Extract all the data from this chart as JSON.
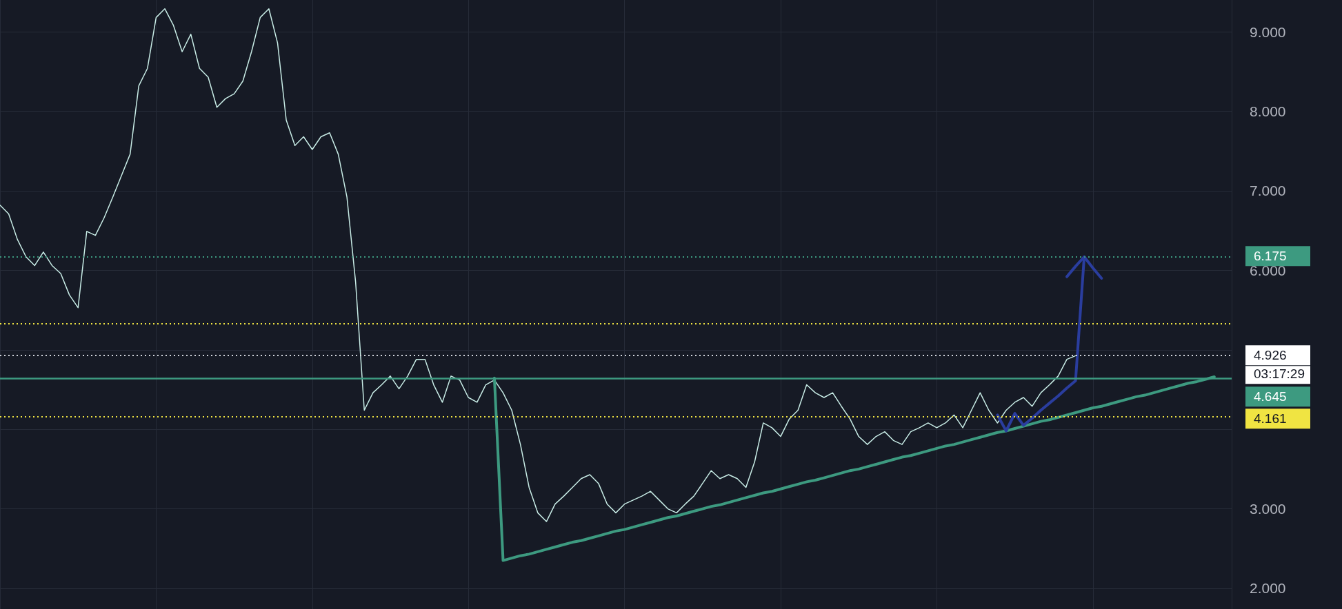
{
  "chart_data": {
    "type": "line",
    "marker": "none",
    "grid": true,
    "tick_labels": "y",
    "categories": [
      null,
      null,
      null,
      null,
      null,
      null,
      null,
      null,
      null,
      null,
      null,
      null,
      null,
      null,
      null,
      null,
      null,
      null,
      null,
      null,
      null,
      null,
      null,
      null,
      null,
      null,
      null,
      null,
      null,
      null,
      null,
      null,
      null,
      null,
      null,
      null,
      null,
      null,
      null,
      null,
      null,
      null,
      null,
      null,
      null,
      null,
      null,
      null,
      null,
      null,
      null,
      null,
      null,
      null,
      null,
      null,
      null,
      null,
      null,
      null,
      null,
      null,
      null,
      null,
      null,
      null,
      null,
      null,
      null,
      null,
      null,
      null,
      null,
      null,
      null,
      null,
      null,
      null,
      null,
      null,
      null,
      null,
      null,
      null,
      null,
      null,
      null,
      null,
      null,
      null,
      null,
      null,
      null,
      null,
      null,
      null,
      null,
      null,
      null,
      null,
      null,
      null,
      null,
      null,
      null,
      null,
      null,
      null,
      null,
      null,
      null,
      null,
      null,
      null,
      null,
      null,
      null,
      null,
      null,
      null,
      null,
      null,
      null,
      null,
      null,
      null,
      null,
      null,
      null,
      null,
      null,
      null,
      null,
      null,
      null,
      null,
      null,
      null,
      null,
      null,
      null,
      null,
      null
    ],
    "ylim": [
      1.74,
      9.4
    ],
    "yticks": [
      {
        "value": 2,
        "label": "2.000"
      },
      {
        "value": 3,
        "label": "3.000"
      },
      {
        "value": 4,
        "label": null
      },
      {
        "value": 5,
        "label": null
      },
      {
        "value": 6,
        "label": "6.000"
      },
      {
        "value": 7,
        "label": "7.000"
      },
      {
        "value": 8,
        "label": "8.000"
      },
      {
        "value": 9,
        "label": "9.000"
      }
    ],
    "series": [
      {
        "color": "#c8ece6",
        "values": [
          6.82,
          6.71,
          6.39,
          6.17,
          6.06,
          6.23,
          6.06,
          5.96,
          5.69,
          5.53,
          6.49,
          6.44,
          6.66,
          6.92,
          7.19,
          7.46,
          8.32,
          8.54,
          9.18,
          9.29,
          9.08,
          8.75,
          8.97,
          8.54,
          8.43,
          8.05,
          8.16,
          8.22,
          8.38,
          8.75,
          9.18,
          9.29,
          8.86,
          7.89,
          7.57,
          7.68,
          7.52,
          7.68,
          7.73,
          7.46,
          6.92,
          5.85,
          4.24,
          4.46,
          4.56,
          4.67,
          4.51,
          4.67,
          4.88,
          4.88,
          4.56,
          4.34,
          4.67,
          4.62,
          4.4,
          4.34,
          4.56,
          4.62,
          4.46,
          4.24,
          3.81,
          3.27,
          2.95,
          2.84,
          3.06,
          3.16,
          3.27,
          3.38,
          3.43,
          3.32,
          3.06,
          2.95,
          3.06,
          3.11,
          3.16,
          3.22,
          3.11,
          3.0,
          2.95,
          3.06,
          3.16,
          3.32,
          3.48,
          3.38,
          3.43,
          3.38,
          3.27,
          3.59,
          4.08,
          4.02,
          3.91,
          4.13,
          4.24,
          4.56,
          4.46,
          4.4,
          4.46,
          4.29,
          4.13,
          3.91,
          3.81,
          3.91,
          3.97,
          3.86,
          3.81,
          3.97,
          4.02,
          4.08,
          4.02,
          4.08,
          4.18,
          4.02,
          4.24,
          4.46,
          4.24,
          4.08,
          4.24,
          4.34,
          4.4,
          4.29,
          4.46,
          4.56,
          4.67,
          4.88,
          4.926,
          null,
          null,
          null,
          null,
          null,
          null,
          null,
          null,
          null,
          null,
          null,
          null,
          null,
          null,
          null,
          null,
          null,
          null
        ]
      },
      {
        "color": "#3d9a80",
        "values": [
          null,
          null,
          null,
          null,
          null,
          null,
          null,
          null,
          null,
          null,
          null,
          null,
          null,
          null,
          null,
          null,
          null,
          null,
          null,
          null,
          null,
          null,
          null,
          null,
          null,
          null,
          null,
          null,
          null,
          null,
          null,
          null,
          null,
          null,
          null,
          null,
          null,
          null,
          null,
          null,
          null,
          null,
          null,
          null,
          null,
          null,
          null,
          null,
          null,
          null,
          null,
          null,
          null,
          null,
          null,
          null,
          null,
          4.645,
          2.35,
          2.38,
          2.41,
          2.43,
          2.46,
          2.49,
          2.52,
          2.55,
          2.58,
          2.6,
          2.63,
          2.66,
          2.69,
          2.72,
          2.74,
          2.77,
          2.8,
          2.83,
          2.86,
          2.89,
          2.91,
          2.94,
          2.97,
          3.0,
          3.03,
          3.05,
          3.08,
          3.11,
          3.14,
          3.17,
          3.2,
          3.22,
          3.25,
          3.28,
          3.31,
          3.34,
          3.36,
          3.39,
          3.42,
          3.45,
          3.48,
          3.5,
          3.53,
          3.56,
          3.59,
          3.62,
          3.65,
          3.67,
          3.7,
          3.73,
          3.76,
          3.79,
          3.81,
          3.84,
          3.87,
          3.9,
          3.93,
          3.96,
          3.98,
          4.01,
          4.04,
          4.07,
          4.1,
          4.12,
          4.15,
          4.18,
          4.21,
          4.24,
          4.27,
          4.29,
          4.32,
          4.35,
          4.38,
          4.41,
          4.43,
          4.46,
          4.49,
          4.52,
          4.55,
          4.58,
          4.6,
          4.63,
          4.66,
          null,
          null
        ]
      },
      {
        "color": "#2a3d9e",
        "values": [
          null,
          null,
          null,
          null,
          null,
          null,
          null,
          null,
          null,
          null,
          null,
          null,
          null,
          null,
          null,
          null,
          null,
          null,
          null,
          null,
          null,
          null,
          null,
          null,
          null,
          null,
          null,
          null,
          null,
          null,
          null,
          null,
          null,
          null,
          null,
          null,
          null,
          null,
          null,
          null,
          null,
          null,
          null,
          null,
          null,
          null,
          null,
          null,
          null,
          null,
          null,
          null,
          null,
          null,
          null,
          null,
          null,
          null,
          null,
          null,
          null,
          null,
          null,
          null,
          null,
          null,
          null,
          null,
          null,
          null,
          null,
          null,
          null,
          null,
          null,
          null,
          null,
          null,
          null,
          null,
          null,
          null,
          null,
          null,
          null,
          null,
          null,
          null,
          null,
          null,
          null,
          null,
          null,
          null,
          null,
          null,
          null,
          null,
          null,
          null,
          null,
          null,
          null,
          null,
          null,
          null,
          null,
          null,
          null,
          null,
          null,
          null,
          null,
          null,
          null,
          4.18,
          3.98,
          4.2,
          4.05,
          4.14,
          4.24,
          4.33,
          4.42,
          4.52,
          4.61,
          6.17,
          null,
          null,
          null,
          null,
          null,
          null,
          null,
          null,
          null,
          null,
          null,
          null,
          null,
          null,
          null,
          null,
          null
        ]
      },
      {
        "color": "#2a3d9e",
        "values": [
          null,
          null,
          null,
          null,
          null,
          null,
          null,
          null,
          null,
          null,
          null,
          null,
          null,
          null,
          null,
          null,
          null,
          null,
          null,
          null,
          null,
          null,
          null,
          null,
          null,
          null,
          null,
          null,
          null,
          null,
          null,
          null,
          null,
          null,
          null,
          null,
          null,
          null,
          null,
          null,
          null,
          null,
          null,
          null,
          null,
          null,
          null,
          null,
          null,
          null,
          null,
          null,
          null,
          null,
          null,
          null,
          null,
          null,
          null,
          null,
          null,
          null,
          null,
          null,
          null,
          null,
          null,
          null,
          null,
          null,
          null,
          null,
          null,
          null,
          null,
          null,
          null,
          null,
          null,
          null,
          null,
          null,
          null,
          null,
          null,
          null,
          null,
          null,
          null,
          null,
          null,
          null,
          null,
          null,
          null,
          null,
          null,
          null,
          null,
          null,
          null,
          null,
          null,
          null,
          null,
          null,
          null,
          null,
          null,
          null,
          null,
          null,
          null,
          null,
          null,
          null,
          null,
          null,
          null,
          null,
          null,
          null,
          null,
          5.92,
          6.05,
          6.17,
          6.03,
          5.9,
          null,
          null,
          null,
          null,
          null,
          null,
          null,
          null,
          null,
          null,
          null,
          null,
          null,
          null,
          null
        ]
      }
    ],
    "ref_lines": [
      {
        "axis": "y",
        "value": 6.175,
        "label": "6.175",
        "color": "#3d9a80",
        "line_style": "dotted"
      },
      {
        "axis": "y",
        "value": 5.33,
        "label": null,
        "color": "#f0e442",
        "line_style": "dotted"
      },
      {
        "axis": "y",
        "value": 4.926,
        "label": "4.926",
        "color": "#d1d4dc",
        "line_style": "dotted"
      },
      {
        "axis": "y",
        "value": 4.645,
        "label": "4.645",
        "color": "#3d9a80",
        "line_style": "solid"
      },
      {
        "axis": "y",
        "value": 4.161,
        "label": "4.161",
        "color": "#f0e442",
        "line_style": "dotted"
      }
    ],
    "annotations": [
      "03:17:29"
    ]
  }
}
